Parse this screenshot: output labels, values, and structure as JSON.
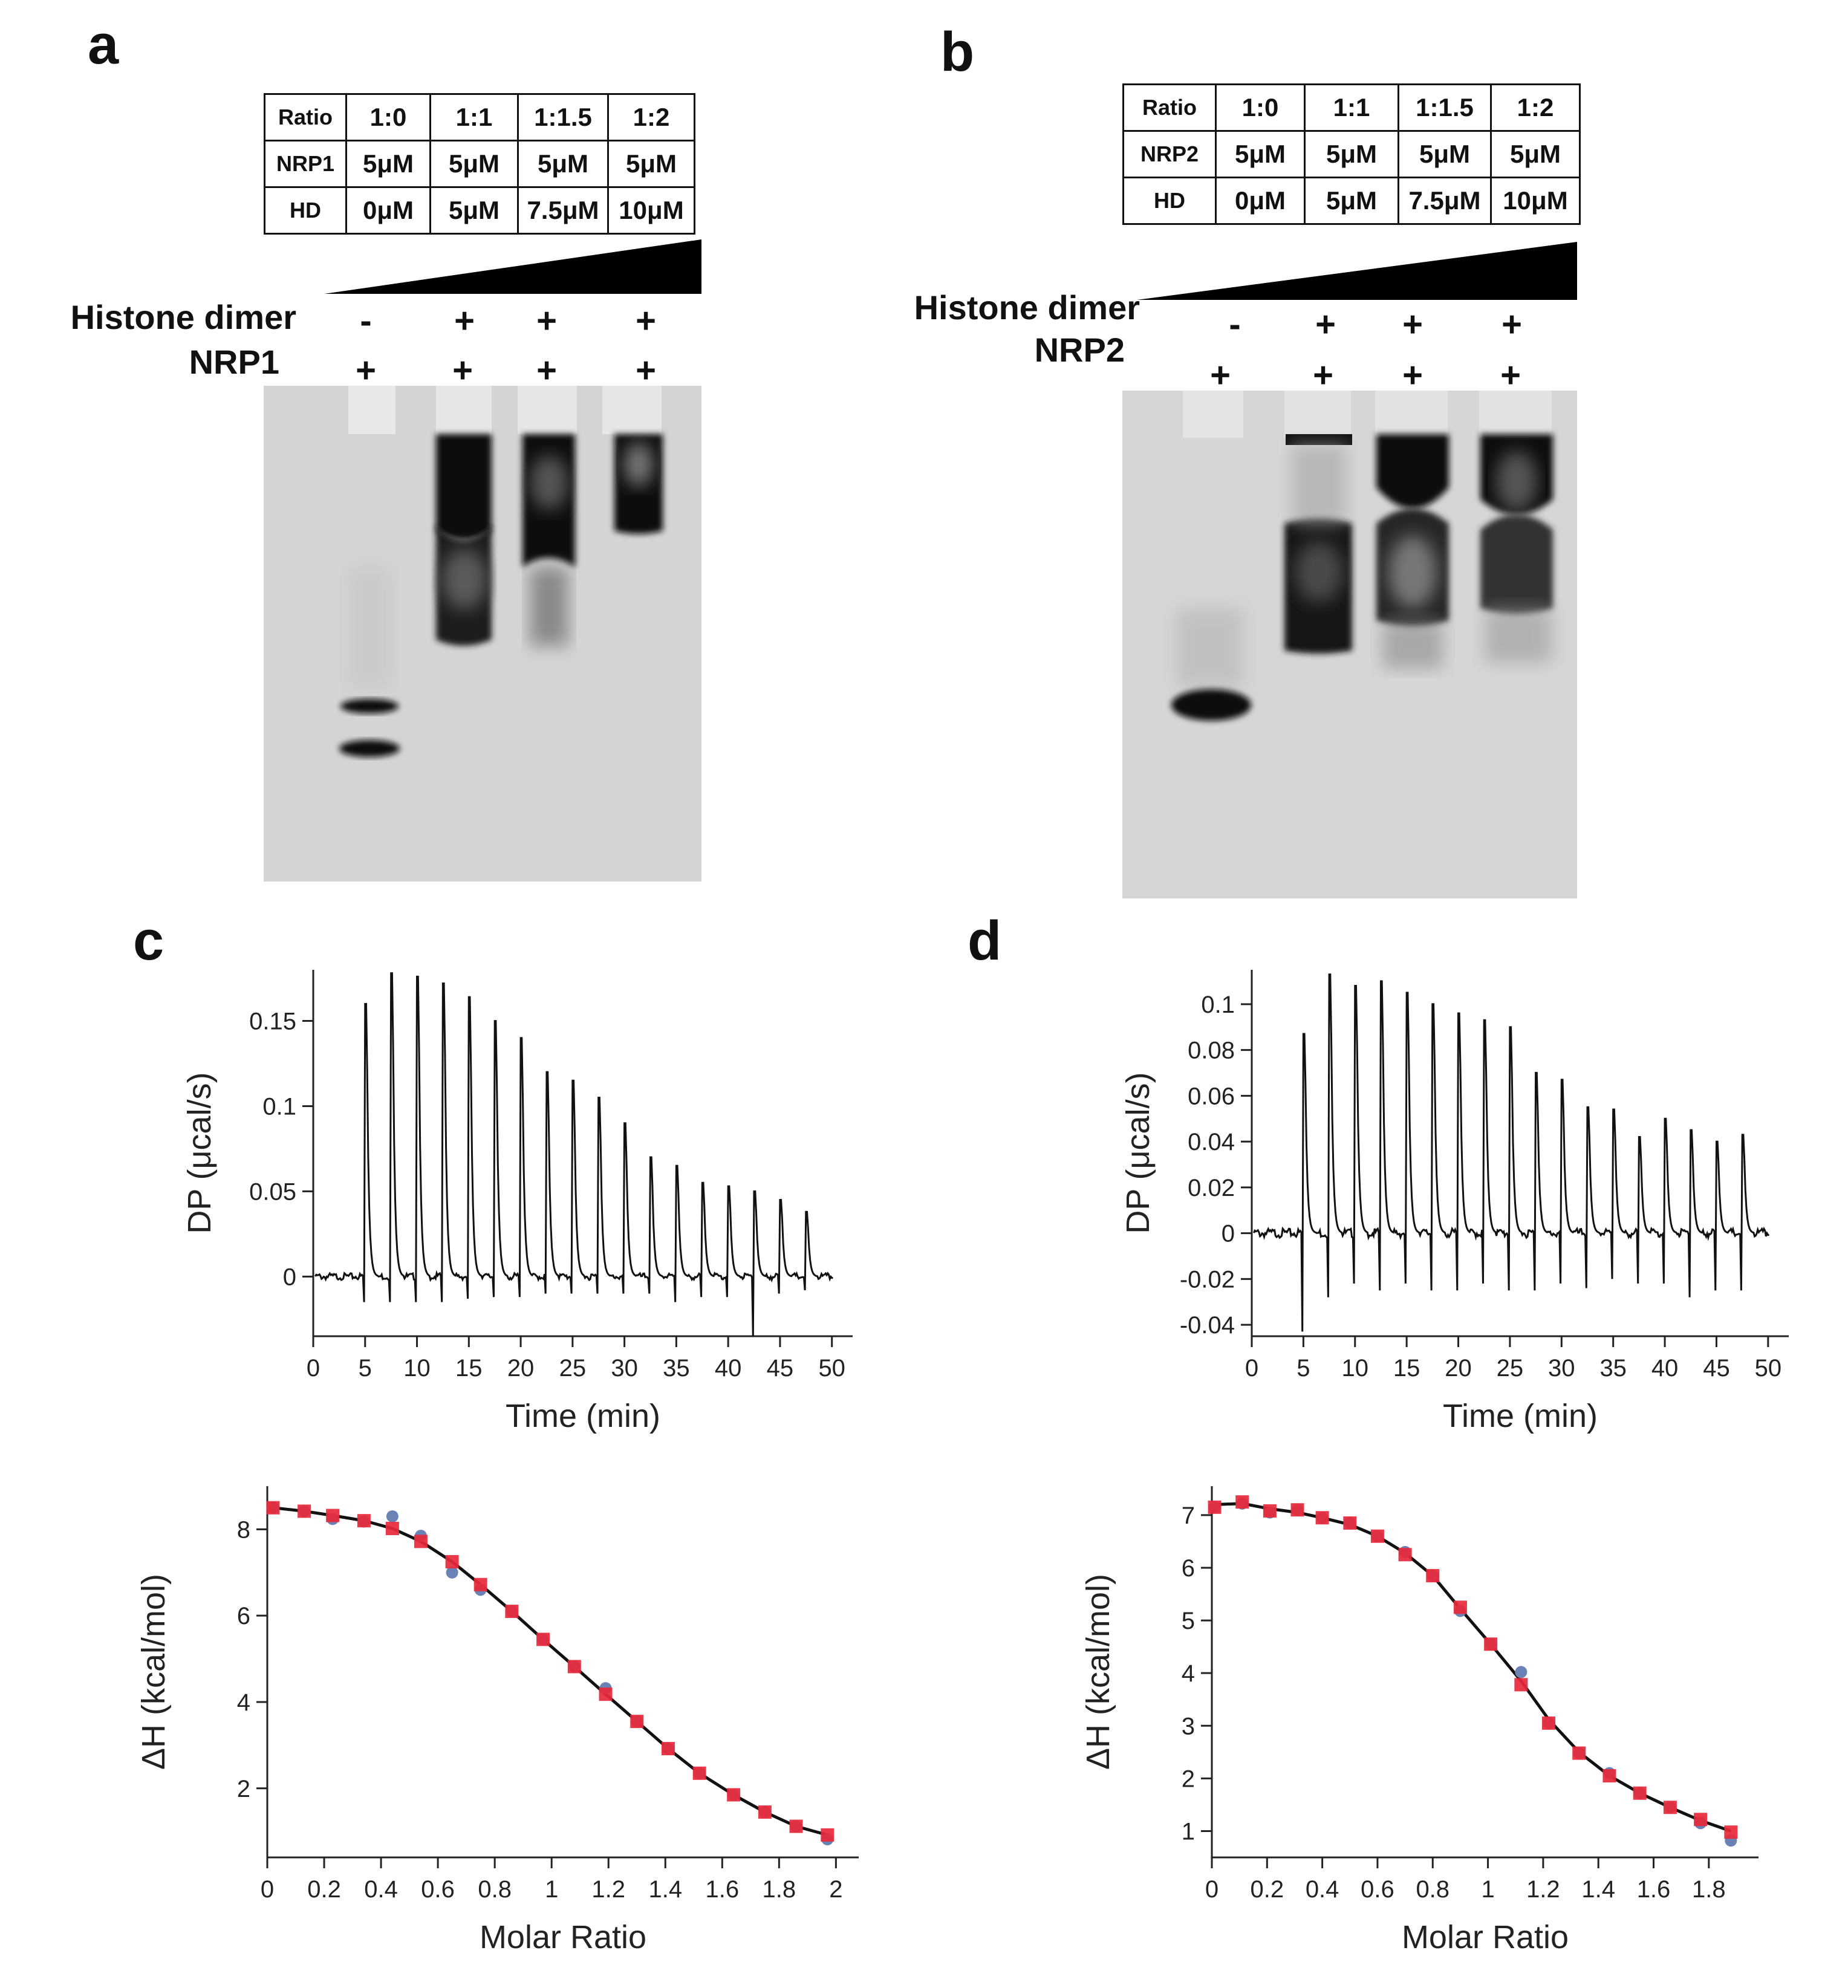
{
  "panels": {
    "a": {
      "letter": "a",
      "table": {
        "rows": [
          [
            "Ratio",
            "1:0",
            "1:1",
            "1:1.5",
            "1:2"
          ],
          [
            "NRP1",
            "5μM",
            "5μM",
            "5μM",
            "5μM"
          ],
          [
            "HD",
            "0μM",
            "5μM",
            "7.5μM",
            "10μM"
          ]
        ]
      },
      "labels": {
        "histone": "Histone dimer",
        "protein": "NRP1"
      },
      "histone_signs": [
        "-",
        "+",
        "+",
        "+"
      ],
      "protein_signs": [
        "+",
        "+",
        "+",
        "+"
      ]
    },
    "b": {
      "letter": "b",
      "table": {
        "rows": [
          [
            "Ratio",
            "1:0",
            "1:1",
            "1:1.5",
            "1:2"
          ],
          [
            "NRP2",
            "5μM",
            "5μM",
            "5μM",
            "5μM"
          ],
          [
            "HD",
            "0μM",
            "5μM",
            "7.5μM",
            "10μM"
          ]
        ]
      },
      "labels": {
        "histone": "Histone dimer",
        "protein": "NRP2"
      },
      "histone_signs": [
        "-",
        "+",
        "+",
        "+"
      ],
      "protein_signs": [
        "+",
        "+",
        "+",
        "+"
      ]
    },
    "c": {
      "letter": "c"
    },
    "d": {
      "letter": "d"
    }
  },
  "chart_data": [
    {
      "id": "c-thermogram",
      "type": "line",
      "xlabel": "Time (min)",
      "ylabel": "DP (μcal/s)",
      "xlim": [
        0,
        52
      ],
      "ylim": [
        -0.035,
        0.18
      ],
      "xticks": [
        0,
        5,
        10,
        15,
        20,
        25,
        30,
        35,
        40,
        45,
        50
      ],
      "yticks": [
        0,
        0.05,
        0.1,
        0.15
      ],
      "ytick_labels": [
        "0",
        "0.05",
        "0.1",
        "0.15"
      ],
      "injection_times": [
        5,
        7.5,
        10,
        12.5,
        15,
        17.5,
        20,
        22.5,
        25,
        27.5,
        30,
        32.5,
        35,
        37.5,
        40,
        42.5,
        45,
        47.5
      ],
      "peak_heights": [
        0.16,
        0.178,
        0.176,
        0.172,
        0.164,
        0.15,
        0.14,
        0.12,
        0.115,
        0.105,
        0.09,
        0.07,
        0.065,
        0.055,
        0.053,
        0.05,
        0.045,
        0.038
      ],
      "trough_depths": [
        -0.015,
        -0.015,
        -0.015,
        -0.015,
        -0.013,
        -0.012,
        -0.012,
        -0.01,
        -0.01,
        -0.01,
        -0.01,
        -0.01,
        -0.015,
        -0.012,
        -0.012,
        -0.035,
        -0.01,
        -0.008
      ]
    },
    {
      "id": "d-thermogram",
      "type": "line",
      "xlabel": "Time (min)",
      "ylabel": "DP (μcal/s)",
      "xlim": [
        0,
        52
      ],
      "ylim": [
        -0.045,
        0.115
      ],
      "xticks": [
        0,
        5,
        10,
        15,
        20,
        25,
        30,
        35,
        40,
        45,
        50
      ],
      "yticks": [
        -0.04,
        -0.02,
        0,
        0.02,
        0.04,
        0.06,
        0.08,
        0.1
      ],
      "ytick_labels": [
        "-0.04",
        "-0.02",
        "0",
        "0.02",
        "0.04",
        "0.06",
        "0.08",
        "0.1"
      ],
      "injection_times": [
        5,
        7.5,
        10,
        12.5,
        15,
        17.5,
        20,
        22.5,
        25,
        27.5,
        30,
        32.5,
        35,
        37.5,
        40,
        42.5,
        45,
        47.5
      ],
      "peak_heights": [
        0.087,
        0.113,
        0.108,
        0.11,
        0.105,
        0.1,
        0.096,
        0.093,
        0.09,
        0.07,
        0.067,
        0.055,
        0.054,
        0.042,
        0.05,
        0.045,
        0.04,
        0.043
      ],
      "trough_depths": [
        -0.043,
        -0.028,
        -0.022,
        -0.025,
        -0.022,
        -0.025,
        -0.025,
        -0.022,
        -0.025,
        -0.025,
        -0.022,
        -0.024,
        -0.02,
        -0.022,
        -0.022,
        -0.028,
        -0.025,
        -0.025
      ]
    },
    {
      "id": "c-isotherm",
      "type": "scatter",
      "xlabel": "Molar Ratio",
      "ylabel": "ΔH (kcal/mol)",
      "xlim": [
        0,
        2.08
      ],
      "ylim": [
        0.4,
        9.0
      ],
      "xticks": [
        0,
        0.2,
        0.4,
        0.6,
        0.8,
        1,
        1.2,
        1.4,
        1.6,
        1.8,
        2
      ],
      "yticks": [
        2,
        4,
        6,
        8
      ],
      "series": [
        {
          "marker": "square",
          "color": "#e8283a",
          "x": [
            0.02,
            0.13,
            0.23,
            0.34,
            0.44,
            0.54,
            0.65,
            0.75,
            0.86,
            0.97,
            1.08,
            1.19,
            1.3,
            1.41,
            1.52,
            1.64,
            1.75,
            1.86,
            1.97
          ],
          "y": [
            8.5,
            8.42,
            8.32,
            8.2,
            8.02,
            7.72,
            7.25,
            6.72,
            6.1,
            5.45,
            4.82,
            4.18,
            3.55,
            2.92,
            2.35,
            1.85,
            1.45,
            1.12,
            0.92
          ]
        },
        {
          "marker": "dot",
          "color": "#6a82b4",
          "x": [
            0.02,
            0.13,
            0.23,
            0.34,
            0.44,
            0.54,
            0.65,
            0.75,
            0.86,
            0.97,
            1.08,
            1.19,
            1.3,
            1.41,
            1.52,
            1.64,
            1.75,
            1.86,
            1.97
          ],
          "y": [
            8.5,
            8.42,
            8.24,
            8.18,
            8.3,
            7.85,
            7.0,
            6.6,
            6.1,
            5.45,
            4.82,
            4.32,
            3.55,
            2.92,
            2.35,
            1.85,
            1.45,
            1.12,
            0.82
          ]
        },
        {
          "marker": "line",
          "color": "#111111",
          "x": [
            0.02,
            0.13,
            0.23,
            0.34,
            0.44,
            0.54,
            0.65,
            0.75,
            0.86,
            0.97,
            1.08,
            1.19,
            1.3,
            1.41,
            1.52,
            1.64,
            1.75,
            1.86,
            1.97
          ],
          "y": [
            8.5,
            8.42,
            8.32,
            8.2,
            8.02,
            7.72,
            7.25,
            6.72,
            6.1,
            5.45,
            4.82,
            4.18,
            3.55,
            2.92,
            2.35,
            1.85,
            1.45,
            1.12,
            0.92
          ]
        }
      ]
    },
    {
      "id": "d-isotherm",
      "type": "scatter",
      "xlabel": "Molar Ratio",
      "ylabel": "ΔH (kcal/mol)",
      "xlim": [
        0,
        1.98
      ],
      "ylim": [
        0.5,
        7.55
      ],
      "xticks": [
        0,
        0.2,
        0.4,
        0.6,
        0.8,
        1,
        1.2,
        1.4,
        1.6,
        1.8
      ],
      "yticks": [
        1,
        2,
        3,
        4,
        5,
        6,
        7
      ],
      "series": [
        {
          "marker": "square",
          "color": "#e8283a",
          "x": [
            0.01,
            0.11,
            0.21,
            0.31,
            0.4,
            0.5,
            0.6,
            0.7,
            0.8,
            0.9,
            1.01,
            1.12,
            1.22,
            1.33,
            1.44,
            1.55,
            1.66,
            1.77,
            1.88
          ],
          "y": [
            7.15,
            7.25,
            7.08,
            7.1,
            6.95,
            6.85,
            6.6,
            6.25,
            5.85,
            5.25,
            4.55,
            3.78,
            3.05,
            2.48,
            2.05,
            1.72,
            1.45,
            1.22,
            0.98
          ]
        },
        {
          "marker": "dot",
          "color": "#6a82b4",
          "x": [
            0.01,
            0.11,
            0.21,
            0.31,
            0.4,
            0.5,
            0.6,
            0.7,
            0.8,
            0.9,
            1.01,
            1.12,
            1.22,
            1.33,
            1.44,
            1.55,
            1.66,
            1.77,
            1.88
          ],
          "y": [
            7.15,
            7.22,
            7.05,
            7.1,
            6.95,
            6.85,
            6.6,
            6.3,
            5.85,
            5.18,
            4.55,
            4.02,
            3.05,
            2.48,
            2.1,
            1.72,
            1.45,
            1.15,
            0.82
          ]
        },
        {
          "marker": "line",
          "color": "#111111",
          "x": [
            0.01,
            0.11,
            0.21,
            0.31,
            0.4,
            0.5,
            0.6,
            0.7,
            0.8,
            0.9,
            1.01,
            1.12,
            1.22,
            1.33,
            1.44,
            1.55,
            1.66,
            1.77,
            1.88
          ],
          "y": [
            7.2,
            7.22,
            7.12,
            7.05,
            6.95,
            6.82,
            6.6,
            6.28,
            5.85,
            5.22,
            4.55,
            3.85,
            3.12,
            2.5,
            2.05,
            1.72,
            1.45,
            1.2,
            1.0
          ]
        }
      ]
    }
  ]
}
